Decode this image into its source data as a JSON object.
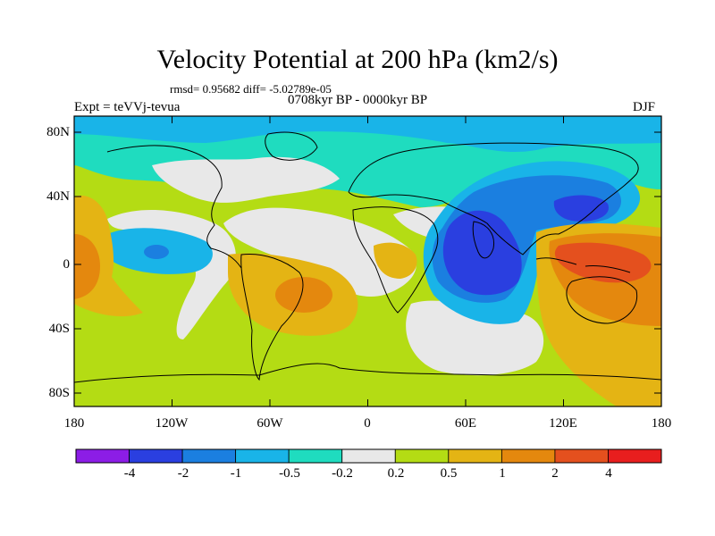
{
  "title": "Velocity Potential at 200 hPa (km2/s)",
  "stats": "rmsd= 0.95682  diff= -5.02789e-05",
  "experiment": "Expt = teVVj-tevua",
  "period": "0708kyr BP - 0000kyr BP",
  "season": "DJF",
  "lat_labels": [
    "80N",
    "40N",
    "0",
    "40S",
    "80S"
  ],
  "lon_labels": [
    "180",
    "120W",
    "60W",
    "0",
    "60E",
    "120E",
    "180"
  ],
  "colorbar": {
    "labels": [
      "-4",
      "-2",
      "-1",
      "-0.5",
      "-0.2",
      "0.2",
      "0.5",
      "1",
      "2",
      "4"
    ],
    "colors": [
      "#8c1de6",
      "#2a3fe0",
      "#1b7fe0",
      "#19b4e8",
      "#1fdcbf",
      "#e8e8e8",
      "#b4dc14",
      "#e4b414",
      "#e4880e",
      "#e4501e",
      "#e81e1e"
    ]
  },
  "field_colors": {
    "neg_strong": "#2a3fe0",
    "neg_mid": "#1b7fe0",
    "neg_weak": "#19b4e8",
    "neg_slight": "#1fdcbf",
    "neutral": "#e8e8e8",
    "pos_slight": "#b4dc14",
    "pos_weak": "#e4b414",
    "pos_mid": "#e4880e",
    "pos_strong": "#e4501e"
  }
}
